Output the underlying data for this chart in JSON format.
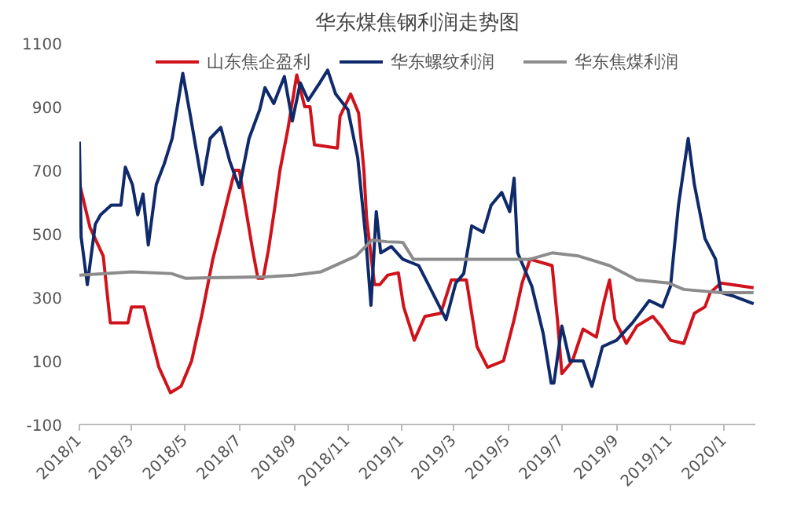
{
  "chart_data": {
    "type": "line",
    "title": "华东煤焦钢利润走势图",
    "legend": "top",
    "grid": false,
    "marker": "none",
    "line_style": "solid",
    "xlim": [
      "2018-01-01",
      "2020-02-05"
    ],
    "xticks": [
      {
        "value": "2018-01-01",
        "label": "2018/1"
      },
      {
        "value": "2018-03-01",
        "label": "2018/3"
      },
      {
        "value": "2018-05-01",
        "label": "2018/5"
      },
      {
        "value": "2018-07-01",
        "label": "2018/7"
      },
      {
        "value": "2018-09-01",
        "label": "2018/9"
      },
      {
        "value": "2018-11-01",
        "label": "2018/11"
      },
      {
        "value": "2019-01-01",
        "label": "2019/1"
      },
      {
        "value": "2019-03-01",
        "label": "2019/3"
      },
      {
        "value": "2019-05-01",
        "label": "2019/5"
      },
      {
        "value": "2019-07-01",
        "label": "2019/7"
      },
      {
        "value": "2019-09-01",
        "label": "2019/9"
      },
      {
        "value": "2019-11-01",
        "label": "2019/11"
      },
      {
        "value": "2020-01-01",
        "label": "2020/1"
      }
    ],
    "ylim": [
      -100,
      1100
    ],
    "yticks": [
      -100,
      100,
      300,
      500,
      700,
      900,
      1100
    ],
    "series": [
      {
        "name": "山东焦企盈利",
        "color": "#d0121b",
        "x": [
          "2018-01-01",
          "2018-01-13",
          "2018-01-28",
          "2018-02-05",
          "2018-02-25",
          "2018-03-01",
          "2018-03-15",
          "2018-03-21",
          "2018-04-01",
          "2018-04-14",
          "2018-04-26",
          "2018-05-08",
          "2018-05-20",
          "2018-06-01",
          "2018-06-10",
          "2018-06-17",
          "2018-06-26",
          "2018-07-01",
          "2018-07-07",
          "2018-07-16",
          "2018-07-22",
          "2018-07-28",
          "2018-08-03",
          "2018-08-10",
          "2018-08-16",
          "2018-08-25",
          "2018-09-04",
          "2018-09-13",
          "2018-09-19",
          "2018-09-24",
          "2018-10-20",
          "2018-10-23",
          "2018-11-04",
          "2018-11-13",
          "2018-11-19",
          "2018-11-22",
          "2018-12-01",
          "2018-12-07",
          "2018-12-16",
          "2018-12-28",
          "2019-01-03",
          "2019-01-15",
          "2019-01-27",
          "2019-02-14",
          "2019-02-26",
          "2019-03-15",
          "2019-03-21",
          "2019-03-27",
          "2019-04-08",
          "2019-04-26",
          "2019-05-08",
          "2019-05-17",
          "2019-05-26",
          "2019-06-20",
          "2019-06-26",
          "2019-07-01",
          "2019-07-13",
          "2019-07-25",
          "2019-08-09",
          "2019-08-18",
          "2019-08-24",
          "2019-08-30",
          "2019-09-12",
          "2019-09-24",
          "2019-10-12",
          "2019-10-21",
          "2019-11-01",
          "2019-11-16",
          "2019-11-28",
          "2019-12-10",
          "2019-12-16",
          "2019-12-28",
          "2020-02-03"
        ],
        "values": [
          660,
          520,
          430,
          220,
          220,
          270,
          270,
          200,
          80,
          0,
          20,
          100,
          250,
          420,
          520,
          600,
          700,
          700,
          600,
          450,
          360,
          360,
          450,
          580,
          700,
          830,
          1000,
          900,
          900,
          780,
          770,
          870,
          940,
          880,
          700,
          550,
          340,
          340,
          370,
          377,
          270,
          165,
          240,
          250,
          355,
          355,
          250,
          145,
          80,
          100,
          230,
          345,
          420,
          400,
          230,
          60,
          100,
          200,
          175,
          290,
          355,
          230,
          155,
          210,
          240,
          210,
          165,
          155,
          250,
          270,
          315,
          345,
          330
        ]
      },
      {
        "name": "华东螺纹利润",
        "color": "#0f2a6b",
        "x": [
          "2018-01-01",
          "2018-01-03",
          "2018-01-10",
          "2018-01-19",
          "2018-01-25",
          "2018-02-06",
          "2018-02-17",
          "2018-02-22",
          "2018-03-02",
          "2018-03-08",
          "2018-03-14",
          "2018-03-20",
          "2018-03-29",
          "2018-04-07",
          "2018-04-16",
          "2018-04-28",
          "2018-05-07",
          "2018-05-20",
          "2018-05-29",
          "2018-06-10",
          "2018-06-20",
          "2018-07-01",
          "2018-07-12",
          "2018-07-24",
          "2018-07-30",
          "2018-08-09",
          "2018-08-21",
          "2018-08-30",
          "2018-09-08",
          "2018-09-17",
          "2018-09-30",
          "2018-10-09",
          "2018-10-18",
          "2018-11-01",
          "2018-11-12",
          "2018-11-21",
          "2018-11-27",
          "2018-12-03",
          "2018-12-08",
          "2018-12-20",
          "2019-01-02",
          "2019-01-20",
          "2019-02-01",
          "2019-02-20",
          "2019-03-03",
          "2019-03-12",
          "2019-03-21",
          "2019-04-03",
          "2019-04-12",
          "2019-04-24",
          "2019-05-03",
          "2019-05-08",
          "2019-05-12",
          "2019-05-28",
          "2019-06-10",
          "2019-06-19",
          "2019-06-22",
          "2019-07-01",
          "2019-07-10",
          "2019-07-25",
          "2019-08-04",
          "2019-08-16",
          "2019-09-01",
          "2019-09-19",
          "2019-10-08",
          "2019-10-23",
          "2019-11-01",
          "2019-11-10",
          "2019-11-21",
          "2019-11-28",
          "2019-12-10",
          "2019-12-22",
          "2019-12-28",
          "2020-01-10",
          "2020-02-03"
        ],
        "values": [
          790,
          490,
          340,
          530,
          560,
          590,
          590,
          710,
          655,
          560,
          625,
          465,
          655,
          720,
          800,
          1005,
          865,
          655,
          800,
          835,
          730,
          645,
          800,
          890,
          960,
          910,
          995,
          855,
          975,
          920,
          975,
          1015,
          940,
          890,
          740,
          490,
          275,
          570,
          440,
          460,
          420,
          400,
          335,
          230,
          345,
          375,
          525,
          505,
          590,
          630,
          570,
          675,
          440,
          335,
          185,
          30,
          30,
          210,
          100,
          100,
          20,
          145,
          165,
          220,
          290,
          270,
          335,
          590,
          800,
          655,
          485,
          420,
          315,
          305,
          280
        ]
      },
      {
        "name": "华东焦煤利润",
        "color": "#8c8c8c",
        "x": [
          "2018-01-01",
          "2018-03-01",
          "2018-04-15",
          "2018-05-01",
          "2018-08-01",
          "2018-09-01",
          "2018-10-01",
          "2018-11-10",
          "2018-11-28",
          "2018-12-15",
          "2019-01-02",
          "2019-01-14",
          "2019-05-26",
          "2019-06-20",
          "2019-07-20",
          "2019-08-24",
          "2019-09-24",
          "2019-10-30",
          "2019-11-16",
          "2019-12-28",
          "2020-02-03"
        ],
        "values": [
          370,
          380,
          375,
          360,
          365,
          370,
          380,
          430,
          480,
          475,
          473,
          420,
          420,
          440,
          430,
          400,
          355,
          345,
          325,
          315,
          315
        ]
      }
    ]
  }
}
